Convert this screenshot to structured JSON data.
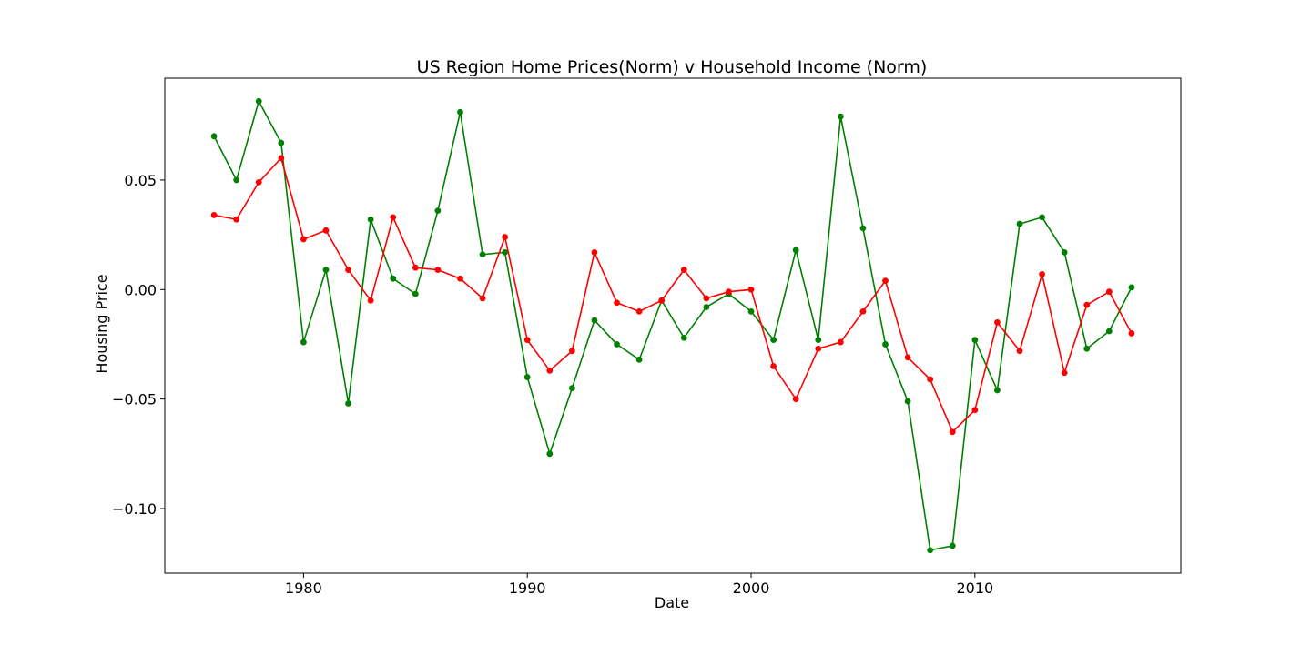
{
  "chart_data": {
    "type": "line",
    "title": "US Region Home Prices(Norm) v Household Income (Norm)",
    "xlabel": "Date",
    "ylabel": "Housing Price",
    "xlim": [
      1973.8,
      2019.2
    ],
    "ylim": [
      -0.1295,
      0.0965
    ],
    "xticks": [
      1980,
      1990,
      2000,
      2010
    ],
    "xtick_labels": [
      "1980",
      "1990",
      "2000",
      "2010"
    ],
    "yticks": [
      -0.1,
      -0.05,
      0.0,
      0.05
    ],
    "ytick_labels": [
      "−0.10",
      "−0.05",
      "0.00",
      "0.05"
    ],
    "grid": false,
    "x": [
      1976,
      1977,
      1978,
      1979,
      1980,
      1981,
      1982,
      1983,
      1984,
      1985,
      1986,
      1987,
      1988,
      1989,
      1990,
      1991,
      1992,
      1993,
      1994,
      1995,
      1996,
      1997,
      1998,
      1999,
      2000,
      2001,
      2002,
      2003,
      2004,
      2005,
      2006,
      2007,
      2008,
      2009,
      2010,
      2011,
      2012,
      2013,
      2014,
      2015,
      2016,
      2017
    ],
    "series": [
      {
        "color": "#008000",
        "values": [
          0.07,
          0.05,
          0.086,
          0.067,
          -0.024,
          0.009,
          -0.052,
          0.032,
          0.005,
          -0.002,
          0.036,
          0.081,
          0.016,
          0.017,
          -0.04,
          -0.075,
          -0.045,
          -0.014,
          -0.025,
          -0.032,
          -0.005,
          -0.022,
          -0.008,
          -0.002,
          -0.01,
          -0.023,
          0.018,
          -0.023,
          0.079,
          0.028,
          -0.025,
          -0.051,
          -0.119,
          -0.117,
          -0.023,
          -0.046,
          0.03,
          0.033,
          0.017,
          -0.027,
          -0.019,
          0.001
        ]
      },
      {
        "color": "#ff0000",
        "values": [
          0.034,
          0.032,
          0.049,
          0.06,
          0.023,
          0.027,
          0.009,
          -0.005,
          0.033,
          0.01,
          0.009,
          0.005,
          -0.004,
          0.024,
          -0.023,
          -0.037,
          -0.028,
          0.017,
          -0.006,
          -0.01,
          -0.005,
          0.009,
          -0.004,
          -0.001,
          0.0,
          -0.035,
          -0.05,
          -0.027,
          -0.024,
          -0.01,
          0.004,
          -0.031,
          -0.041,
          -0.065,
          -0.055,
          -0.015,
          -0.028,
          0.007,
          -0.038,
          -0.007,
          -0.001,
          -0.02
        ]
      }
    ]
  }
}
